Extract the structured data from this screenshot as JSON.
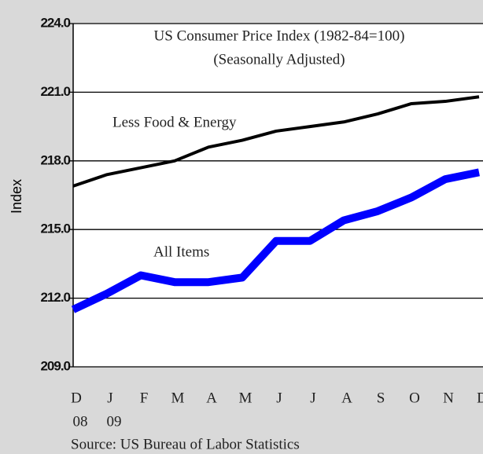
{
  "chart_data": {
    "type": "line",
    "title": "US Consumer Price Index (1982-84=100)",
    "subtitle": "(Seasonally Adjusted)",
    "y_label": "Index",
    "source": "Source: US Bureau of Labor Statistics",
    "categories": [
      "D",
      "J",
      "F",
      "M",
      "A",
      "M",
      "J",
      "J",
      "A",
      "S",
      "O",
      "N",
      "D"
    ],
    "category_sublabels": [
      "08",
      "09",
      null,
      null,
      null,
      null,
      null,
      null,
      null,
      null,
      null,
      null,
      null
    ],
    "series": [
      {
        "name": "Less Food & Energy",
        "color": "#000000",
        "values": [
          216.9,
          217.4,
          217.7,
          218.0,
          218.6,
          218.9,
          219.3,
          219.5,
          219.7,
          220.05,
          220.5,
          220.6,
          220.8
        ]
      },
      {
        "name": "All Items",
        "color": "#0000ff",
        "values": [
          211.5,
          212.2,
          213.0,
          212.7,
          212.7,
          212.9,
          214.5,
          214.5,
          215.4,
          215.8,
          216.4,
          217.2,
          217.5
        ]
      }
    ],
    "ylim": [
      209,
      224
    ],
    "yticks": [
      {
        "value": 209,
        "label": "209.0"
      },
      {
        "value": 212,
        "label": "212.0"
      },
      {
        "value": 215,
        "label": "215.0"
      },
      {
        "value": 218,
        "label": "218.0"
      },
      {
        "value": 221,
        "label": "221.0"
      },
      {
        "value": 224,
        "label": "224.0"
      }
    ],
    "grid": true
  }
}
